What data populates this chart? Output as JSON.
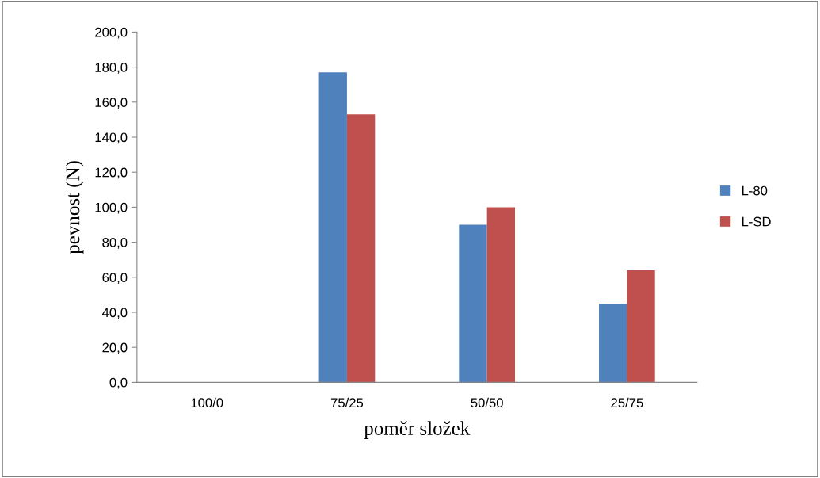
{
  "chart_data": {
    "type": "bar",
    "xlabel": "poměr složek",
    "ylabel": "pevnost (N)",
    "categories": [
      "100/0",
      "75/25",
      "50/50",
      "25/75"
    ],
    "series": [
      {
        "name": "L-80",
        "color": "#4f81bd",
        "values": [
          0,
          177,
          90,
          45
        ]
      },
      {
        "name": "L-SD",
        "color": "#c0504d",
        "values": [
          0,
          153,
          100,
          64
        ]
      }
    ],
    "ylim": [
      0,
      200
    ],
    "yticks": [
      {
        "value": 0,
        "label": "0,0"
      },
      {
        "value": 20,
        "label": "20,0"
      },
      {
        "value": 40,
        "label": "40,0"
      },
      {
        "value": 60,
        "label": "60,0"
      },
      {
        "value": 80,
        "label": "80,0"
      },
      {
        "value": 100,
        "label": "100,0"
      },
      {
        "value": 120,
        "label": "120,0"
      },
      {
        "value": 140,
        "label": "140,0"
      },
      {
        "value": 160,
        "label": "160,0"
      },
      {
        "value": 180,
        "label": "180,0"
      },
      {
        "value": 200,
        "label": "200,0"
      }
    ],
    "grid": false,
    "legend": "right"
  }
}
